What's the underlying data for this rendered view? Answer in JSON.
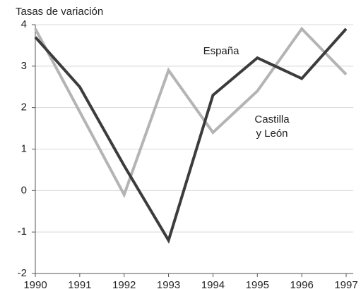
{
  "chart_data": {
    "type": "line",
    "title": "Tasas de variación",
    "categories": [
      "1990",
      "1991",
      "1992",
      "1993",
      "1994",
      "1995",
      "1996",
      "1997"
    ],
    "series": [
      {
        "name": "España",
        "color": "#3c3c3c",
        "values": [
          3.7,
          2.5,
          0.6,
          -1.2,
          2.3,
          3.2,
          2.7,
          3.9
        ]
      },
      {
        "name": "Castilla y León",
        "color": "#b4b4b4",
        "values": [
          3.9,
          1.9,
          -0.1,
          2.9,
          1.4,
          2.4,
          3.9,
          2.8
        ]
      }
    ],
    "annotations": [
      [
        "España"
      ],
      [
        "Castilla",
        "y León"
      ]
    ],
    "ylim": [
      -2,
      4
    ],
    "yticks": [
      -2,
      -1,
      0,
      1,
      2,
      3,
      4
    ],
    "grid": true
  }
}
